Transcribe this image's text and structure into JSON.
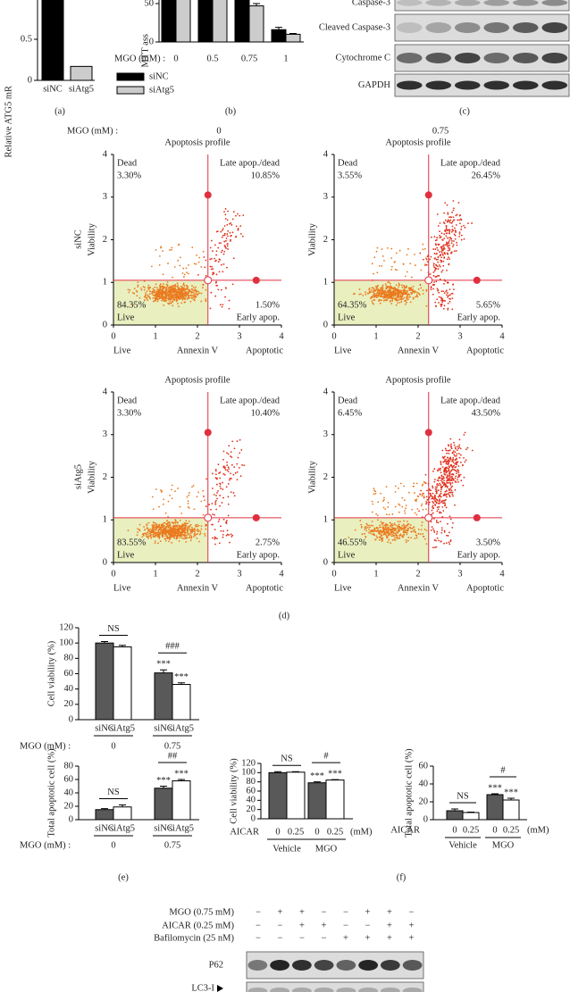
{
  "panel_a": {
    "label": "(a)",
    "y_label": "Relative ATG5 mR",
    "ylim": [
      0,
      1
    ],
    "yticks": [
      0,
      0.5
    ],
    "categories": [
      "siNC",
      "siAtg5"
    ],
    "values": [
      1.0,
      0.17
    ],
    "colors": [
      "#000000",
      "#cccccc"
    ]
  },
  "panel_b": {
    "label": "(b)",
    "y_label": "MTT ass",
    "ylim": [
      0,
      100
    ],
    "yticks": [
      0,
      50
    ],
    "x_title": "MGO (mM) :",
    "categories": [
      "0",
      "0.5",
      "0.75",
      "1"
    ],
    "series": [
      {
        "name": "siNC",
        "color": "#000000",
        "values": [
          100,
          100,
          100,
          16
        ],
        "errors": [
          1,
          1,
          1,
          3
        ]
      },
      {
        "name": "siAtg5",
        "color": "#cccccc",
        "values": [
          100,
          100,
          47,
          10
        ],
        "errors": [
          1,
          1,
          3,
          1
        ]
      }
    ]
  },
  "panel_c": {
    "label": "(c)",
    "rows": [
      "Caspase-3",
      "Cleaved Caspase-3",
      "Cytochrome C",
      "GAPDH"
    ]
  },
  "panel_d": {
    "label": "(d)",
    "condition_title": "MGO (mM) :",
    "conditions": [
      "0",
      "0.75"
    ],
    "rows": [
      "siNC",
      "siAtg5"
    ],
    "ticks": [
      0,
      1,
      2,
      3,
      4
    ],
    "xlim": [
      0,
      4
    ],
    "ylim": [
      0,
      4
    ],
    "plots": [
      {
        "title": "Apoptosis profile",
        "y_label": "Viability",
        "x_label": "Annexin V",
        "x_left": "Live",
        "x_right": "Apoptotic",
        "q_dead": "Dead",
        "dead": "3.30%",
        "q_late": "Late apop./dead",
        "late": "10.85%",
        "live": "84.35%",
        "q_live": "Live",
        "early": "1.50%",
        "q_early": "Early apop."
      },
      {
        "title": "Apoptosis profile",
        "y_label": "Viability",
        "x_label": "Annexin V",
        "x_left": "Live",
        "x_right": "Apoptotic",
        "q_dead": "Dead",
        "dead": "3.55%",
        "q_late": "Late apop./dead",
        "late": "26.45%",
        "live": "64.35%",
        "q_live": "Live",
        "early": "5.65%",
        "q_early": "Early apop."
      },
      {
        "title": "Apoptosis profile",
        "y_label": "Viability",
        "x_label": "Annexin V",
        "x_left": "Live",
        "x_right": "Apoptotic",
        "q_dead": "Dead",
        "dead": "3.30%",
        "q_late": "Late apop./dead",
        "late": "10.40%",
        "live": "83.55%",
        "q_live": "Live",
        "early": "2.75%",
        "q_early": "Early apop."
      },
      {
        "title": "Apoptosis profile",
        "y_label": "Viability",
        "x_label": "Annexin V",
        "x_left": "Live",
        "x_right": "Apoptotic",
        "q_dead": "Dead",
        "dead": "6.45%",
        "q_late": "Late apop./dead",
        "late": "43.50%",
        "live": "46.55%",
        "q_live": "Live",
        "early": "3.50%",
        "q_early": "Early apop."
      }
    ]
  },
  "panel_e": {
    "label": "(e)",
    "x_title": "MGO (mM) :",
    "colors": [
      "#595959",
      "#ffffff"
    ],
    "charts": [
      {
        "y_label": "Cell viability (%)",
        "ylim": [
          0,
          120
        ],
        "yticks": [
          0,
          20,
          40,
          60,
          80,
          100,
          120
        ],
        "categories": [
          "siNC",
          "siAtg5",
          "siNC",
          "siAtg5"
        ],
        "groups": [
          "0",
          "0.75"
        ],
        "values": [
          100,
          95,
          61,
          46
        ],
        "errors": [
          2,
          2,
          4,
          2
        ],
        "bar_marks": [
          null,
          null,
          "***",
          "***"
        ],
        "group_marks": [
          "NS",
          "###"
        ]
      },
      {
        "y_label": "Total apoptotic cell (%)",
        "ylim": [
          0,
          80
        ],
        "yticks": [
          0,
          20,
          40,
          60,
          80
        ],
        "categories": [
          "siNC",
          "siAtg5",
          "siNC",
          "siAtg5"
        ],
        "groups": [
          "0",
          "0.75"
        ],
        "values": [
          15,
          19,
          47,
          58
        ],
        "errors": [
          1.5,
          3,
          3,
          2
        ],
        "bar_marks": [
          null,
          null,
          "***",
          "***"
        ],
        "group_marks": [
          "NS",
          "##"
        ]
      }
    ]
  },
  "panel_f": {
    "label": "(f)",
    "x_title": "AICAR",
    "unit": "(mM)",
    "colors": [
      "#595959",
      "#ffffff"
    ],
    "charts": [
      {
        "y_label": "Cell viability (%)",
        "ylim": [
          0,
          120
        ],
        "yticks": [
          0,
          20,
          40,
          60,
          80,
          100,
          120
        ],
        "categories": [
          "0",
          "0.25",
          "0",
          "0.25"
        ],
        "groups": [
          "Vehicle",
          "MGO"
        ],
        "values": [
          100,
          101,
          78,
          84
        ],
        "errors": [
          2,
          1,
          2,
          1
        ],
        "bar_marks": [
          null,
          null,
          "***",
          "***"
        ],
        "group_marks": [
          "NS",
          "#"
        ]
      },
      {
        "y_label": "Total apoptotic cell (%)",
        "ylim": [
          0,
          60
        ],
        "yticks": [
          0,
          20,
          40,
          60
        ],
        "categories": [
          "0",
          "0.25",
          "0",
          "0.25"
        ],
        "groups": [
          "Vehicle",
          "MGO"
        ],
        "values": [
          10,
          8,
          28,
          22
        ],
        "errors": [
          2,
          0.5,
          1,
          2
        ],
        "bar_marks": [
          null,
          null,
          "***",
          "***"
        ],
        "group_marks": [
          "NS",
          "#"
        ]
      }
    ]
  },
  "panel_g": {
    "conditions": [
      {
        "label": "MGO (0.75 mM)",
        "signs": [
          "−",
          "+",
          "+",
          "−",
          "−",
          "+",
          "+",
          "−"
        ]
      },
      {
        "label": "AICAR (0.25 mM)",
        "signs": [
          "−",
          "−",
          "+",
          "+",
          "−",
          "−",
          "+",
          "+"
        ]
      },
      {
        "label": "Bafilomycin (25 nM)",
        "signs": [
          "−",
          "−",
          "−",
          "−",
          "+",
          "+",
          "+",
          "+"
        ]
      }
    ],
    "blots": [
      "P62",
      "LC3-I"
    ]
  }
}
